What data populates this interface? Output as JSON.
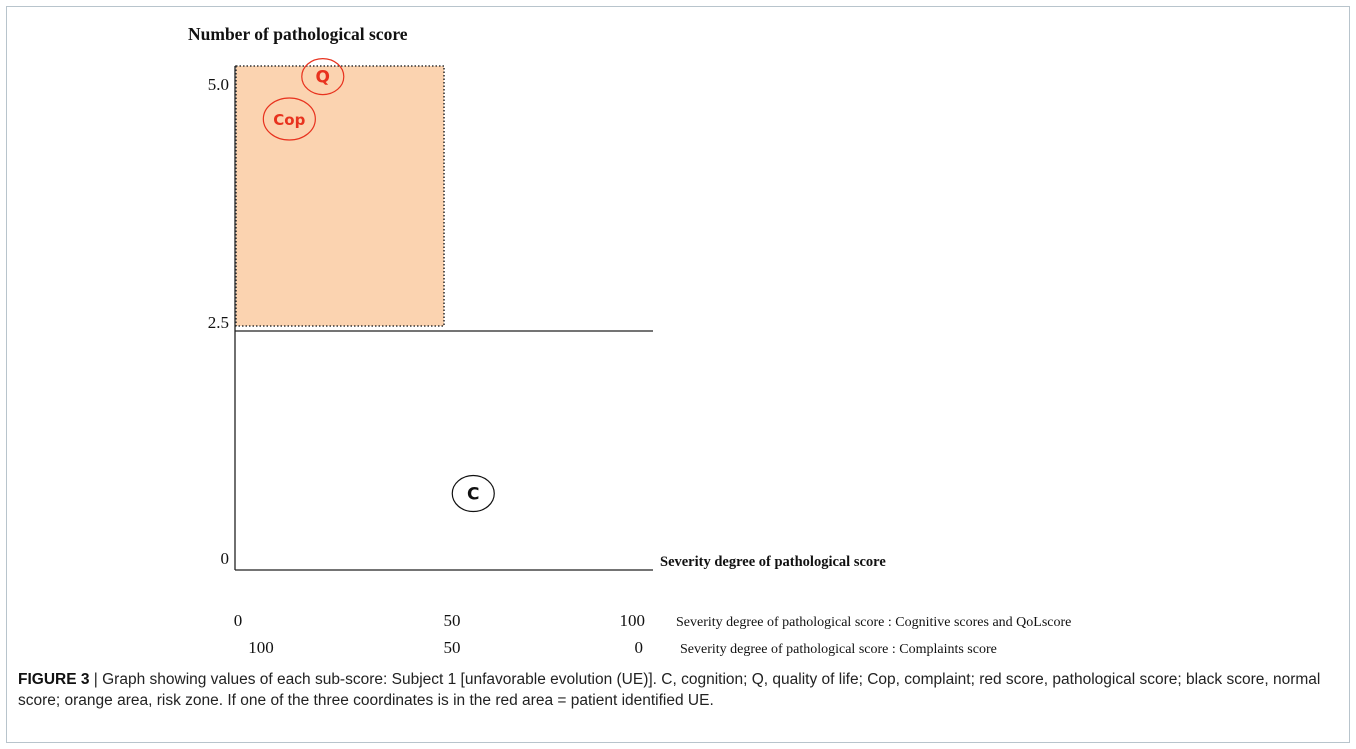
{
  "colors": {
    "risk_zone_fill": "#fbd3b0",
    "pathological": "#e8321e",
    "normal": "#111111",
    "axis": "#222222"
  },
  "chart_data": {
    "type": "scatter",
    "ylabel": "Number of pathological score",
    "xlabel": "Severity degree of pathological score",
    "y_ticks": [
      "5.0",
      "2.5",
      "0"
    ],
    "ylim": [
      0,
      5
    ],
    "xlim": [
      0,
      100
    ],
    "x_axis_rows": [
      {
        "ticks": [
          "0",
          "50",
          "100"
        ],
        "label": "Severity degree of pathological score : Cognitive scores and QoLscore"
      },
      {
        "ticks": [
          "100",
          "50",
          "0"
        ],
        "label": "Severity degree of pathological score : Complaints score"
      }
    ],
    "threshold_y": 2.5,
    "risk_zone": {
      "x_range": [
        0,
        50
      ],
      "y_range": [
        2.5,
        5.0
      ]
    },
    "points": [
      {
        "label": "Q",
        "x": 21,
        "y": 4.9,
        "status": "pathological"
      },
      {
        "label": "Cop",
        "x": 13,
        "y": 4.5,
        "status": "pathological"
      },
      {
        "label": "C",
        "x": 57,
        "y": 0.8,
        "status": "normal"
      }
    ]
  },
  "caption": {
    "label": "FIGURE 3",
    "text": " | Graph showing values of each sub-score: Subject 1 [unfavorable evolution (UE)]. C, cognition; Q, quality of life; Cop, complaint; red score, pathological score; black score, normal score; orange area, risk zone. If one of the three coordinates is in the red area = patient identified UE."
  }
}
